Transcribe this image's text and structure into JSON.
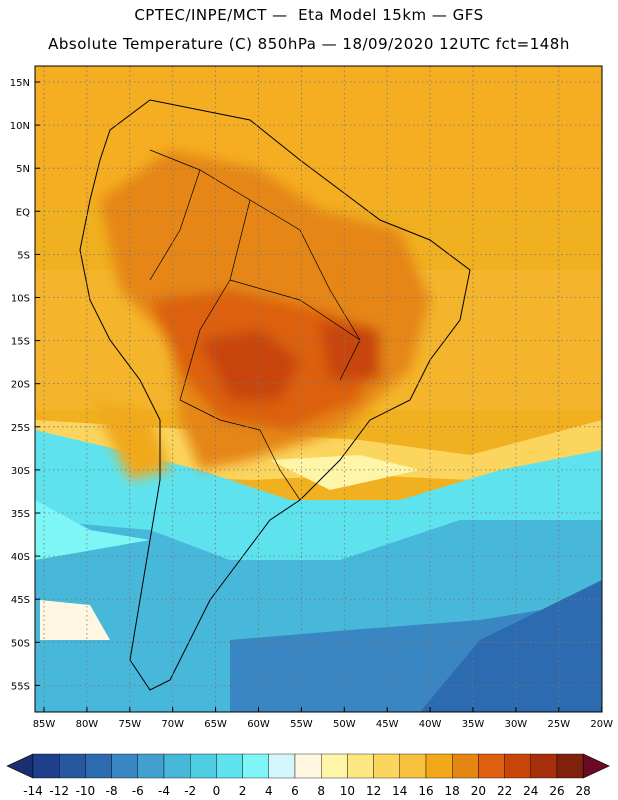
{
  "title": {
    "line1": "CPTEC/INPE/MCT —  Eta Model 15km — GFS",
    "line2": "Absolute Temperature (C) 850hPa — 18/09/2020 12UTC fct=148h"
  },
  "lat_labels": [
    "15N",
    "10N",
    "5N",
    "EQ",
    "5S",
    "10S",
    "15S",
    "20S",
    "25S",
    "30S",
    "35S",
    "40S",
    "45S",
    "50S",
    "55S"
  ],
  "lon_labels": [
    "85W",
    "80W",
    "75W",
    "70W",
    "65W",
    "60W",
    "55W",
    "50W",
    "45W",
    "40W",
    "35W",
    "30W",
    "25W",
    "20W"
  ],
  "colorbar": {
    "labels": [
      "-14",
      "-12",
      "-10",
      "-8",
      "-6",
      "-4",
      "-2",
      "0",
      "2",
      "4",
      "6",
      "8",
      "10",
      "12",
      "14",
      "16",
      "18",
      "20",
      "22",
      "24",
      "26",
      "28"
    ],
    "colors": [
      "#1f3f8c",
      "#27579f",
      "#2d6bb0",
      "#3a86c2",
      "#42a0cf",
      "#47b8da",
      "#4fcde3",
      "#5ee3ee",
      "#7ff6f6",
      "#d4f6fa",
      "#fff7e1",
      "#fff5a9",
      "#fde782",
      "#fbd55e",
      "#f7c13e",
      "#f1a91a",
      "#e58612",
      "#dc6010",
      "#c84509",
      "#a62f0d",
      "#80210d"
    ],
    "low_color": "#1b2f70",
    "high_color": "#6a0b26"
  }
}
